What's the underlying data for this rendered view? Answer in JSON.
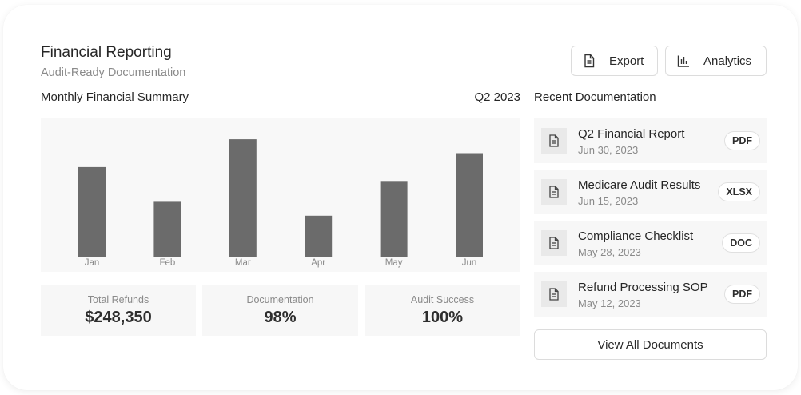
{
  "header": {
    "title": "Financial Reporting",
    "subtitle": "Audit-Ready Documentation",
    "export_label": "Export",
    "analytics_label": "Analytics"
  },
  "summary": {
    "label": "Monthly Financial Summary",
    "period": "Q2 2023"
  },
  "chart_data": {
    "type": "bar",
    "categories": [
      "Jan",
      "Feb",
      "Mar",
      "Apr",
      "May",
      "Jun"
    ],
    "values": [
      65,
      40,
      85,
      30,
      55,
      75
    ],
    "ylim": [
      0,
      100
    ],
    "grid": false,
    "bar_color": "#6b6b6b"
  },
  "stats": [
    {
      "label": "Total Refunds",
      "value": "$248,350"
    },
    {
      "label": "Documentation",
      "value": "98%"
    },
    {
      "label": "Audit Success",
      "value": "100%"
    }
  ],
  "recent": {
    "label": "Recent Documentation",
    "docs": [
      {
        "name": "Q2 Financial Report",
        "date": "Jun 30, 2023",
        "type": "PDF",
        "icon": "document-icon"
      },
      {
        "name": "Medicare Audit Results",
        "date": "Jun 15, 2023",
        "type": "XLSX",
        "icon": "document-icon"
      },
      {
        "name": "Compliance Checklist",
        "date": "May 28, 2023",
        "type": "DOC",
        "icon": "document-icon"
      },
      {
        "name": "Refund Processing SOP",
        "date": "May 12, 2023",
        "type": "PDF",
        "icon": "document-icon"
      }
    ],
    "view_all_label": "View All Documents"
  },
  "colors": {
    "bar": "#6b6b6b",
    "panel": "#f8f8f8",
    "muted_text": "#8a8a8a"
  }
}
